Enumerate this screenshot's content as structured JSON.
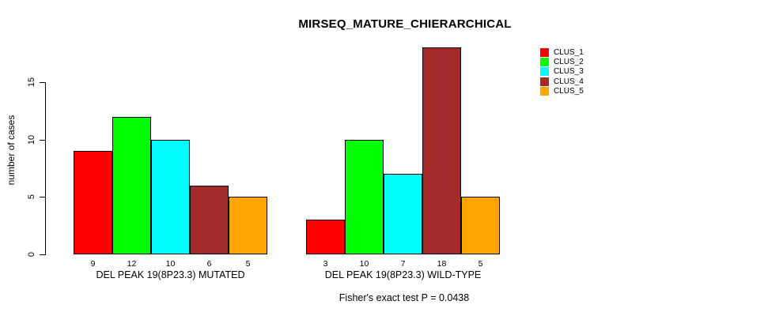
{
  "chart_data": {
    "type": "bar",
    "title": "MIRSEQ_MATURE_CHIERARCHICAL",
    "ylabel": "number of cases",
    "xlabel": "",
    "ylim": [
      0,
      15
    ],
    "yticks": [
      0,
      5,
      10,
      15
    ],
    "grid": false,
    "legend_position": "right",
    "categories": [
      "DEL PEAK 19(8P23.3) MUTATED",
      "DEL PEAK 19(8P23.3) WILD-TYPE"
    ],
    "series": [
      {
        "name": "CLUS_1",
        "color": "#FF0000",
        "values": [
          9,
          3
        ]
      },
      {
        "name": "CLUS_2",
        "color": "#00FF00",
        "values": [
          12,
          10
        ]
      },
      {
        "name": "CLUS_3",
        "color": "#00FFFF",
        "values": [
          10,
          7
        ]
      },
      {
        "name": "CLUS_4",
        "color": "#A52A2A",
        "values": [
          6,
          18
        ]
      },
      {
        "name": "CLUS_5",
        "color": "#FFA500",
        "values": [
          5,
          5
        ]
      }
    ],
    "bar_value_labels_shown": true,
    "annotation": "Fisher's exact test P = 0.0438"
  }
}
